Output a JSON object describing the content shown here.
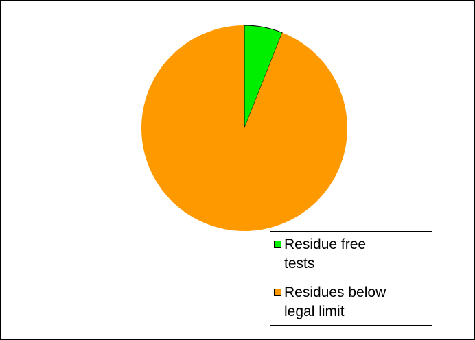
{
  "chart_data": {
    "type": "pie",
    "title": "",
    "slices": [
      {
        "label": "Residue free tests",
        "value": 6,
        "color": "#00ee00"
      },
      {
        "label": "Residues below legal limit",
        "value": 94,
        "color": "#ff9900"
      }
    ],
    "legend_position": "bottom-right",
    "legend": {
      "items": [
        {
          "line1": "Residue free",
          "line2": "tests",
          "color": "#00ee00"
        },
        {
          "line1": "Residues below",
          "line2": "legal limit",
          "color": "#ff9900"
        }
      ]
    }
  }
}
